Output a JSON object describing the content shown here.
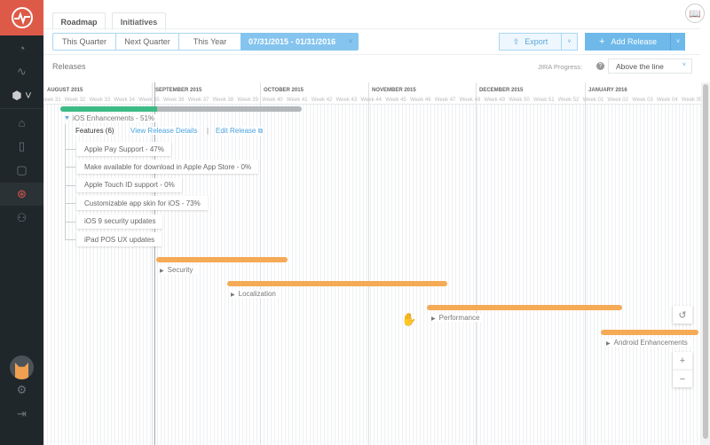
{
  "sidebar": {
    "items": [
      "dashboard-icon",
      "activity-icon",
      "workspace-icon",
      "home-icon",
      "document-icon",
      "clipboard-icon",
      "roadmap-icon",
      "users-icon"
    ],
    "active": "roadmap-icon",
    "bottom": [
      "avatar",
      "settings-icon",
      "logout-icon"
    ]
  },
  "tabs": [
    {
      "label": "Roadmap"
    },
    {
      "label": "Initiatives"
    }
  ],
  "range": {
    "options": [
      "This Quarter",
      "Next Quarter",
      "This Year"
    ],
    "selected": "07/31/2015 - 01/31/2016"
  },
  "toolbar": {
    "export_label": "Export",
    "add_label": "Add Release"
  },
  "section_title": "Releases",
  "jira": {
    "label": "JIRA Progress:",
    "value": "Above the line"
  },
  "timeline": {
    "months": [
      "AUGUST 2015",
      "SEPTEMBER 2015",
      "OCTOBER 2015",
      "NOVEMBER 2015",
      "DECEMBER 2015",
      "JANUARY 2016"
    ],
    "weeks": [
      "Week 31",
      "Week 32",
      "Week 33",
      "Week 34",
      "Week 35",
      "Week 36",
      "Week 37",
      "Week 38",
      "Week 39",
      "Week 40",
      "Week 41",
      "Week 42",
      "Week 43",
      "Week 44",
      "Week 45",
      "Week 46",
      "Week 47",
      "Week 48",
      "Week 49",
      "Week 50",
      "Week 51",
      "Week 52",
      "Week 01",
      "Week 02",
      "Week 03",
      "Week 04",
      "Week 05"
    ]
  },
  "release": {
    "title": "iOS Enhancements - 51%",
    "progress": 51,
    "features_label": "Features (6)",
    "view_link": "View Release Details",
    "separator": "|",
    "edit_link": "Edit Release",
    "features": [
      "Apple Pay Support - 47%",
      "Make available for download in Apple App Store - 0%",
      "Apple Touch ID support - 0%",
      "Customizable app skin for iOS - 73%",
      "iOS 9 security updates",
      "iPad POS UX updates"
    ]
  },
  "other_releases": [
    "Security",
    "Localization",
    "Performance",
    "Android Enhancements"
  ],
  "colors": {
    "brand": "#de5a48",
    "accent": "#84c4ee",
    "progress": "#3dbb87",
    "bar": "#f5aa55",
    "sidebar": "#20272b"
  }
}
